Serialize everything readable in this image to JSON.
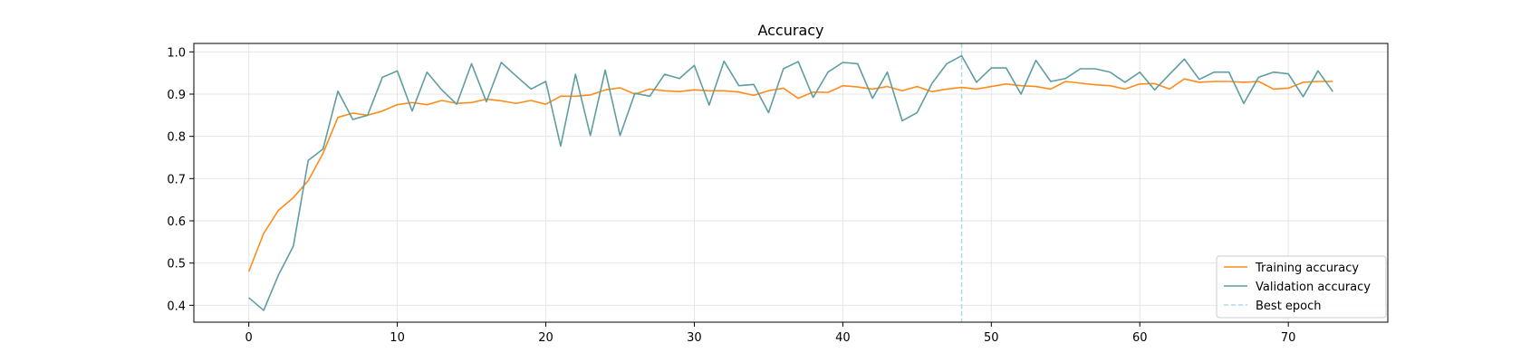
{
  "chart_data": {
    "type": "line",
    "title": "Accuracy",
    "xlabel": "",
    "ylabel": "",
    "xlim": [
      -3.7,
      76.7
    ],
    "ylim": [
      0.36,
      1.02
    ],
    "xticks": [
      0,
      10,
      20,
      30,
      40,
      50,
      60,
      70
    ],
    "yticks": [
      0.4,
      0.5,
      0.6,
      0.7,
      0.8,
      0.9,
      1.0
    ],
    "xtick_labels": [
      "0",
      "10",
      "20",
      "30",
      "40",
      "50",
      "60",
      "70"
    ],
    "ytick_labels": [
      "0.4",
      "0.5",
      "0.6",
      "0.7",
      "0.8",
      "0.9",
      "1.0"
    ],
    "grid": true,
    "legend_position": "bottom-right",
    "series": [
      {
        "name": "Training accuracy",
        "color": "#ff8c1a",
        "values": [
          0.48,
          0.57,
          0.625,
          0.655,
          0.695,
          0.76,
          0.845,
          0.855,
          0.85,
          0.86,
          0.875,
          0.88,
          0.875,
          0.885,
          0.878,
          0.88,
          0.888,
          0.884,
          0.878,
          0.885,
          0.876,
          0.895,
          0.895,
          0.898,
          0.91,
          0.915,
          0.9,
          0.912,
          0.908,
          0.906,
          0.91,
          0.908,
          0.908,
          0.905,
          0.897,
          0.908,
          0.914,
          0.89,
          0.905,
          0.904,
          0.92,
          0.917,
          0.912,
          0.918,
          0.908,
          0.918,
          0.906,
          0.912,
          0.916,
          0.912,
          0.918,
          0.924,
          0.92,
          0.918,
          0.912,
          0.93,
          0.926,
          0.922,
          0.92,
          0.912,
          0.924,
          0.925,
          0.912,
          0.936,
          0.928,
          0.93,
          0.93,
          0.928,
          0.93,
          0.912,
          0.914,
          0.928,
          0.93,
          0.93
        ]
      },
      {
        "name": "Validation accuracy",
        "color": "#5f9ea0",
        "values": [
          0.418,
          0.388,
          0.472,
          0.54,
          0.743,
          0.77,
          0.907,
          0.84,
          0.85,
          0.94,
          0.955,
          0.86,
          0.952,
          0.91,
          0.876,
          0.972,
          0.882,
          0.975,
          0.943,
          0.912,
          0.93,
          0.777,
          0.947,
          0.802,
          0.957,
          0.802,
          0.902,
          0.895,
          0.947,
          0.937,
          0.968,
          0.874,
          0.978,
          0.92,
          0.923,
          0.856,
          0.96,
          0.977,
          0.892,
          0.952,
          0.975,
          0.972,
          0.89,
          0.952,
          0.837,
          0.856,
          0.925,
          0.972,
          0.991,
          0.928,
          0.962,
          0.962,
          0.9,
          0.98,
          0.93,
          0.937,
          0.96,
          0.96,
          0.952,
          0.928,
          0.952,
          0.91,
          0.947,
          0.983,
          0.935,
          0.952,
          0.952,
          0.878,
          0.94,
          0.952,
          0.948,
          0.894,
          0.955,
          0.906
        ]
      }
    ],
    "vline": {
      "name": "Best epoch",
      "x": 48,
      "color": "#add8e6"
    }
  }
}
